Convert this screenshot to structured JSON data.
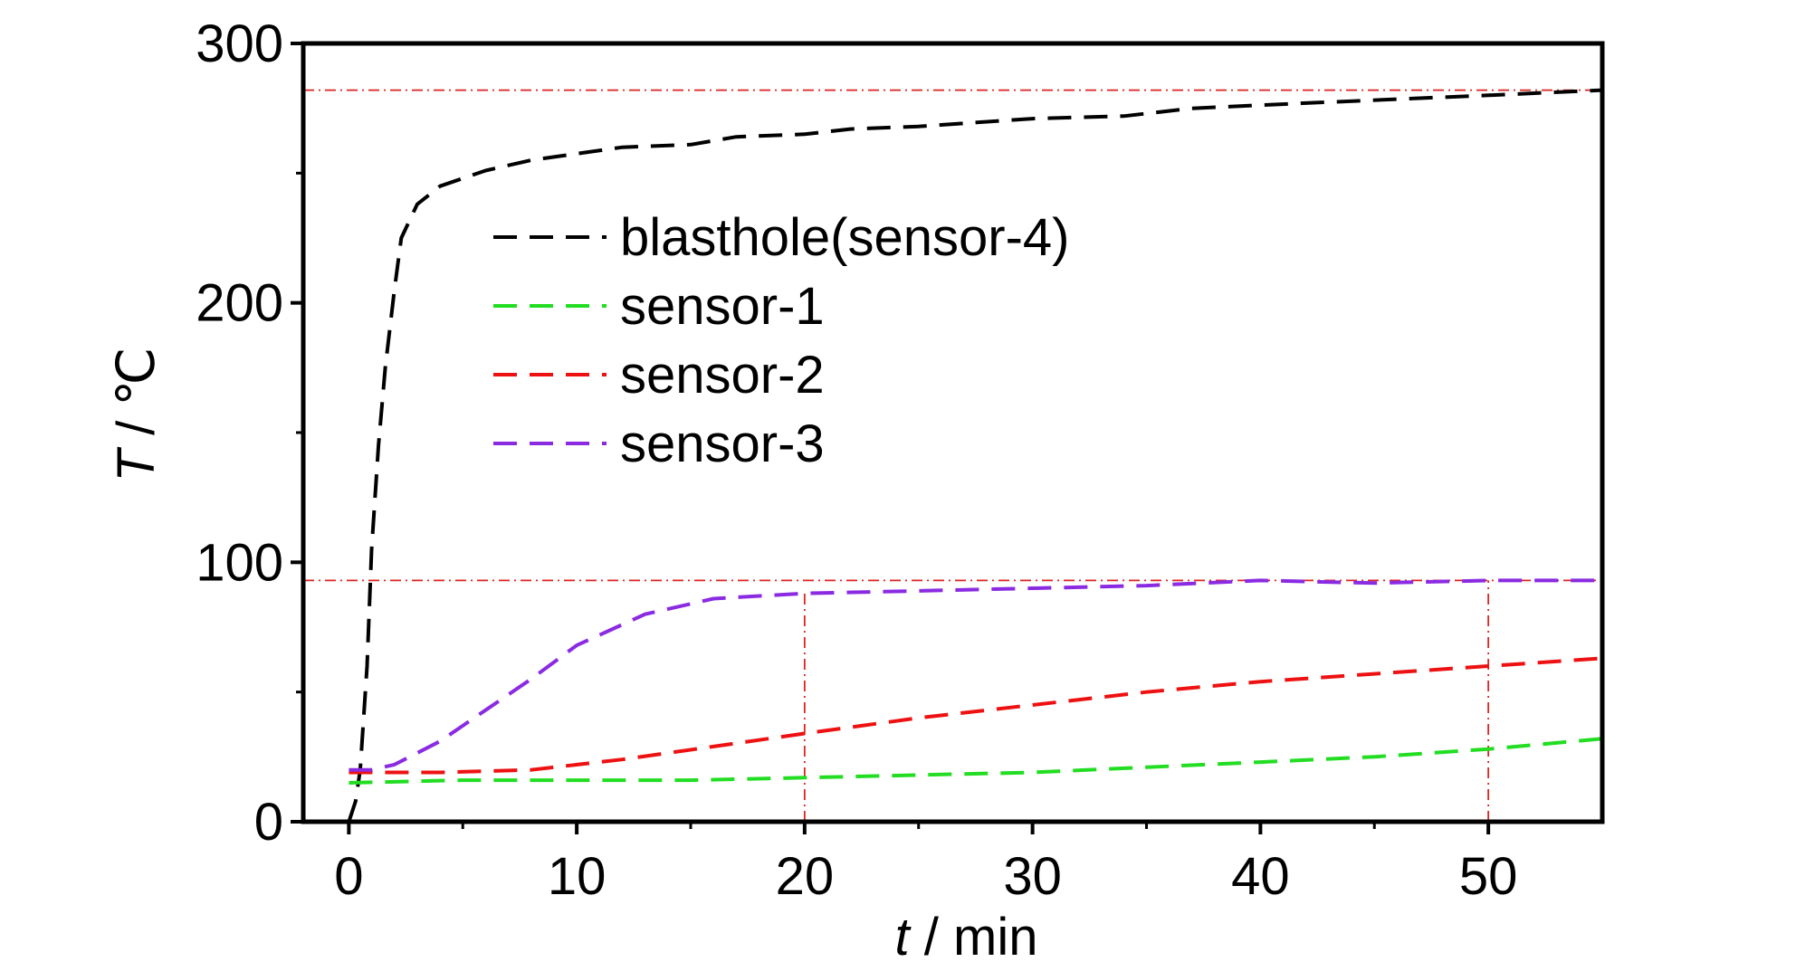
{
  "chart_data": {
    "type": "line",
    "xlabel_var": "t",
    "xlabel_unit": " / min",
    "ylabel_var": "T",
    "ylabel_unit": " / ℃",
    "xlim": [
      -2,
      55
    ],
    "ylim": [
      0,
      300
    ],
    "x_ticks": [
      0,
      10,
      20,
      30,
      40,
      50
    ],
    "x_tick_labels": [
      "0",
      "10",
      "20",
      "30",
      "40",
      "50"
    ],
    "y_ticks": [
      0,
      100,
      200,
      300
    ],
    "y_tick_labels": [
      "0",
      "100",
      "200",
      "300"
    ],
    "grid": false,
    "legend_position": "upper-left-inside",
    "series": [
      {
        "name": "blasthole(sensor-4)",
        "color": "#000000",
        "x": [
          0,
          0.3,
          0.5,
          0.8,
          1.0,
          1.3,
          1.6,
          2.0,
          2.3,
          3.0,
          4.0,
          6.0,
          8.0,
          12.0,
          15.0,
          17.0,
          20.0,
          22.0,
          25.0,
          30.0,
          34.0,
          37.0,
          42.0,
          50.0,
          55.0
        ],
        "y": [
          0,
          8,
          20,
          60,
          105,
          145,
          175,
          205,
          225,
          238,
          245,
          251,
          255,
          260,
          261,
          264,
          265,
          267,
          268,
          271,
          272,
          275,
          277,
          280,
          282
        ]
      },
      {
        "name": "sensor-1",
        "color": "#22dd22",
        "x": [
          0,
          5,
          10,
          15,
          20,
          25,
          30,
          35,
          40,
          45,
          50,
          55
        ],
        "y": [
          15,
          16,
          16,
          16,
          17,
          18,
          19,
          21,
          23,
          25,
          28,
          32
        ]
      },
      {
        "name": "sensor-2",
        "color": "#ee1111",
        "x": [
          0,
          4,
          8,
          12,
          16,
          20,
          25,
          30,
          35,
          40,
          45,
          50,
          55
        ],
        "y": [
          19,
          19,
          20,
          24,
          29,
          34,
          40,
          45,
          50,
          54,
          57,
          60,
          63
        ]
      },
      {
        "name": "sensor-3",
        "color": "#8a2be2",
        "x": [
          0,
          1,
          2,
          4,
          6,
          8,
          10,
          13,
          16,
          20,
          25,
          30,
          35,
          40,
          45,
          50,
          55
        ],
        "y": [
          20,
          20,
          22,
          31,
          43,
          55,
          68,
          80,
          86,
          88,
          89,
          90,
          91,
          93,
          92,
          93,
          93
        ]
      }
    ],
    "reference_lines": [
      {
        "orientation": "horizontal",
        "value": 282,
        "color": "#dd2222"
      },
      {
        "orientation": "horizontal",
        "value": 93,
        "color": "#dd2222"
      },
      {
        "orientation": "vertical",
        "value": 20,
        "from": 0,
        "to": 88,
        "color": "#dd2222"
      },
      {
        "orientation": "vertical",
        "value": 50,
        "from": 0,
        "to": 93,
        "color": "#dd2222"
      }
    ]
  }
}
